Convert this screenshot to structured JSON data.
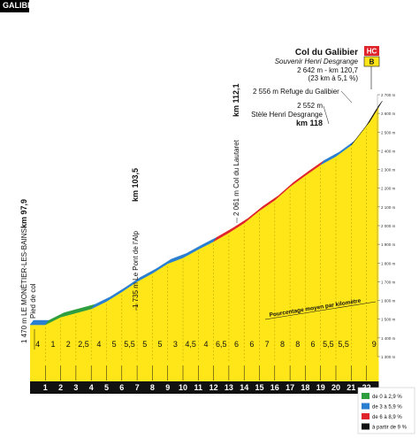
{
  "header": {
    "title": "GALIBIER"
  },
  "summit": {
    "name": "Col du Galibier",
    "subtitle": "Souvenir Henri Desgrange",
    "line1": "2 642 m - km 120,7",
    "line2": "(23 km à 5,1 %)",
    "category_badge": "HC",
    "bonus_badge": "B"
  },
  "annotations": [
    {
      "id": "ann-start",
      "lines": [
        "1 470 m LE MONÊTIER-LES-BAINS",
        "Pied de col"
      ],
      "km_label": "km 97,9"
    },
    {
      "id": "ann-alp",
      "lines": [
        "1 735 m Le Pont de l'Alp"
      ],
      "km_label": "km 103,5"
    },
    {
      "id": "ann-lautaret",
      "lines": [
        "2 061 m Col du Lautaret"
      ],
      "km_label": "km 112,1"
    },
    {
      "id": "ann-stele",
      "lines": [
        "2 552 m",
        "Stèle Henri Desgrange"
      ],
      "km_label": "km 118"
    },
    {
      "id": "ann-refuge",
      "lines": [
        "2 556 m Refuge du Galibier"
      ],
      "km_label": ""
    }
  ],
  "gradient_caption": "Pourcentage moyen par kilomètre",
  "legend": [
    {
      "label": "de 0 à 2,9 %",
      "color": "#2e9e3e"
    },
    {
      "label": "de 3 à 5,9 %",
      "color": "#2b7fd1"
    },
    {
      "label": "de 6 à 8,9 %",
      "color": "#e0242c"
    },
    {
      "label": "à partir de 9 %",
      "color": "#111111"
    }
  ],
  "colors": {
    "fill": "#ffe619",
    "fill_dark": "#c9b400",
    "background": "#ffffff"
  },
  "chart_data": {
    "type": "area",
    "title": "GALIBIER",
    "x_unit": "km",
    "y_unit": "m",
    "ylim": [
      1300,
      2700
    ],
    "y_ticks": [
      "1 300 m",
      "1 400 m",
      "1 500 m",
      "1 600 m",
      "1 700 m",
      "1 800 m",
      "1 900 m",
      "2 000 m",
      "2 100 m",
      "2 200 m",
      "2 300 m",
      "2 400 m",
      "2 500 m",
      "2 600 m",
      "2 700 m"
    ],
    "y_tick_values": [
      1300,
      1400,
      1500,
      1600,
      1700,
      1800,
      1900,
      2000,
      2100,
      2200,
      2300,
      2400,
      2500,
      2600,
      2700
    ],
    "km_labels": [
      "1",
      "2",
      "3",
      "4",
      "5",
      "6",
      "7",
      "8",
      "9",
      "10",
      "11",
      "12",
      "13",
      "14",
      "15",
      "16",
      "17",
      "18",
      "19",
      "20",
      "21",
      "22"
    ],
    "gradients": [
      "4",
      "1",
      "2",
      "2,5",
      "4",
      "5",
      "5,5",
      "5",
      "5",
      "3",
      "4,5",
      "4",
      "6,5",
      "6",
      "6",
      "7",
      "8",
      "8",
      "6",
      "5,5",
      "5,5",
      "9"
    ],
    "gradient_values": [
      4,
      1,
      2,
      2.5,
      4,
      5,
      5.5,
      5,
      5,
      3,
      4.5,
      4,
      6.5,
      6,
      6,
      7,
      8,
      8,
      6,
      5.5,
      5.5,
      9
    ],
    "profile_km": [
      0,
      1,
      2,
      3,
      4,
      5,
      6,
      7,
      8,
      9,
      10,
      11,
      12,
      13,
      14,
      15,
      16,
      17,
      18,
      19,
      20,
      21,
      22,
      22.8
    ],
    "profile_alt": [
      1470,
      1470,
      1511,
      1533,
      1555,
      1595,
      1646,
      1701,
      1745,
      1797,
      1828,
      1873,
      1915,
      1962,
      2014,
      2080,
      2136,
      2208,
      2268,
      2325,
      2370,
      2430,
      2535,
      2642
    ],
    "point_labels": [
      {
        "km": 0,
        "label": "4"
      },
      {
        "km": 22.8,
        "label": "9"
      }
    ]
  }
}
